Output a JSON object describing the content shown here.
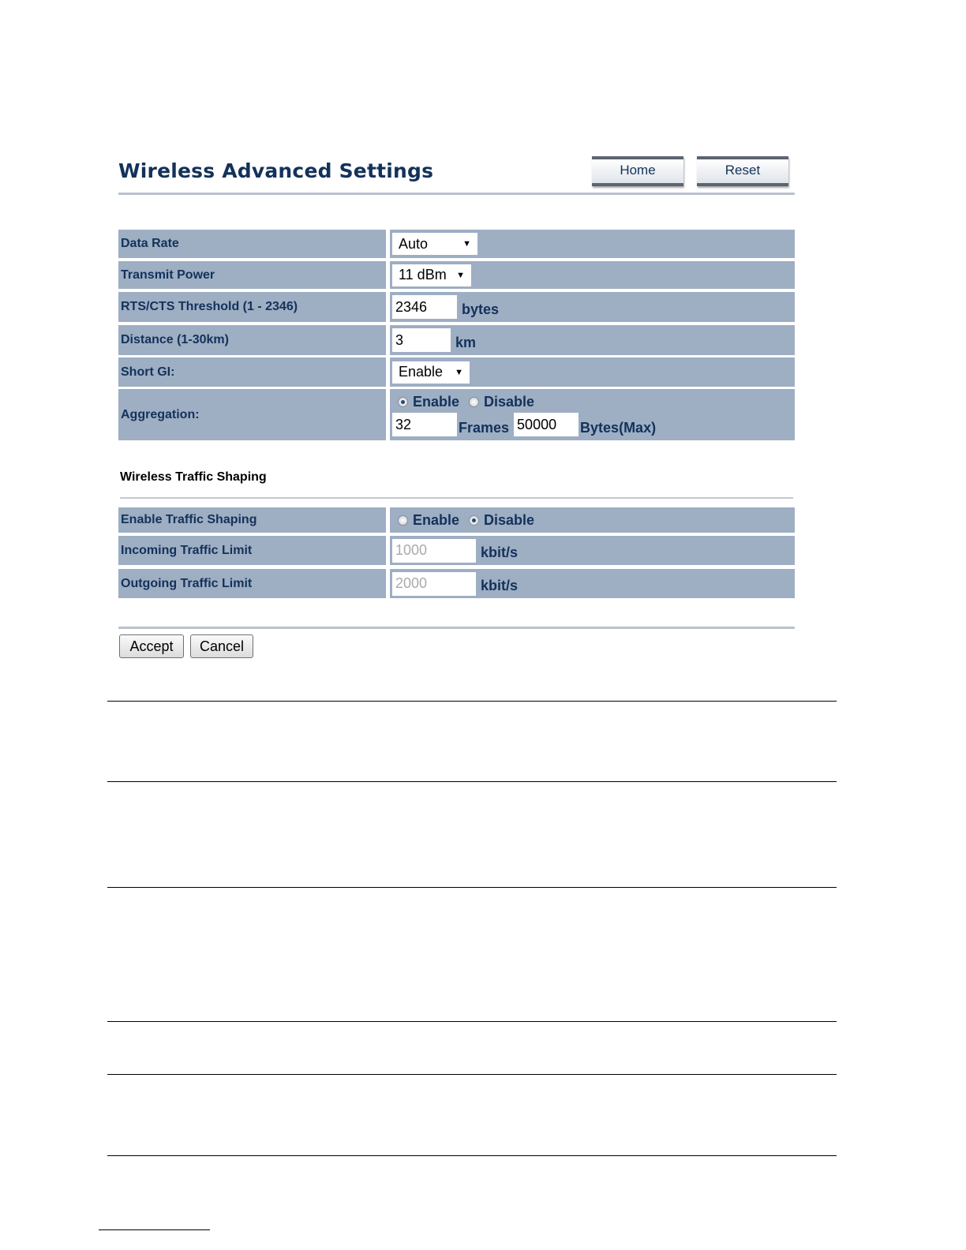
{
  "header": {
    "title": "Wireless Advanced Settings",
    "home_label": "Home",
    "reset_label": "Reset"
  },
  "advanced": {
    "data_rate": {
      "label": "Data Rate",
      "value": "Auto"
    },
    "transmit_power": {
      "label": "Transmit Power",
      "value": "11 dBm"
    },
    "rts": {
      "label": "RTS/CTS Threshold (1 - 2346)",
      "value": "2346",
      "unit": "bytes"
    },
    "distance": {
      "label": "Distance (1-30km)",
      "value": "3",
      "unit": "km"
    },
    "short_gi": {
      "label": "Short GI:",
      "value": "Enable"
    },
    "aggregation": {
      "label": "Aggregation:",
      "enable_label": "Enable",
      "disable_label": "Disable",
      "selected": "Enable",
      "frames_value": "32",
      "frames_unit": "Frames",
      "bytes_value": "50000",
      "bytes_unit": "Bytes(Max)"
    }
  },
  "traffic": {
    "section_title": "Wireless Traffic Shaping",
    "enable": {
      "label": "Enable Traffic Shaping",
      "enable_label": "Enable",
      "disable_label": "Disable",
      "selected": "Disable"
    },
    "incoming": {
      "label": "Incoming Traffic Limit",
      "value": "1000",
      "unit": "kbit/s"
    },
    "outgoing": {
      "label": "Outgoing Traffic Limit",
      "value": "2000",
      "unit": "kbit/s"
    }
  },
  "footer": {
    "accept_label": "Accept",
    "cancel_label": "Cancel"
  },
  "colors": {
    "row_bg": "#9eaec3",
    "title": "#13325a"
  }
}
